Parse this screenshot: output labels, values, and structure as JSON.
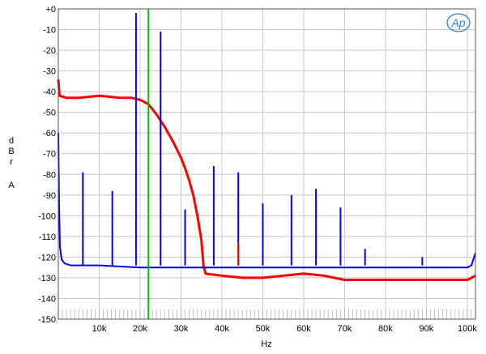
{
  "chart_data": {
    "type": "line",
    "title": "",
    "xlabel": "Hz",
    "ylabel": "dBr A",
    "ylabel_chars": [
      "d",
      "B",
      "r",
      "",
      "A"
    ],
    "logo": "AP",
    "xlim": [
      0,
      102000
    ],
    "ylim": [
      -150,
      0
    ],
    "grid": true,
    "y_ticks": [
      0,
      -10,
      -20,
      -30,
      -40,
      -50,
      -60,
      -70,
      -80,
      -90,
      -100,
      -110,
      -120,
      -130,
      -140,
      -150
    ],
    "y_tick_labels": [
      "+0",
      "-10",
      "-20",
      "-30",
      "-40",
      "-50",
      "-60",
      "-70",
      "-80",
      "-90",
      "-100",
      "-110",
      "-120",
      "-130",
      "-140",
      "-150"
    ],
    "x_ticks": [
      10000,
      20000,
      30000,
      40000,
      50000,
      60000,
      70000,
      80000,
      90000,
      100000
    ],
    "x_tick_labels": [
      "10k",
      "20k",
      "30k",
      "40k",
      "50k",
      "60k",
      "70k",
      "80k",
      "90k",
      "100k"
    ],
    "series": [
      {
        "color": "#ff0000",
        "x": [
          0,
          300,
          2000,
          5000,
          10000,
          15000,
          18000,
          20000,
          22000,
          24000,
          26000,
          28000,
          30000,
          31000,
          32000,
          33000,
          34000,
          35000,
          35500,
          36000,
          40000,
          45000,
          50000,
          55000,
          60000,
          65000,
          70000,
          80000,
          90000,
          100000,
          102000
        ],
        "y": [
          -34,
          -42,
          -43,
          -43,
          -42,
          -43,
          -43,
          -44,
          -46,
          -51,
          -57,
          -64,
          -72,
          -77,
          -83,
          -90,
          -100,
          -112,
          -124,
          -128,
          -129,
          -130,
          -130,
          -129,
          -128,
          -129,
          -131,
          -131,
          -131,
          -131,
          -129
        ]
      },
      {
        "color": "#0000ff",
        "x": [
          0,
          200,
          400,
          800,
          1500,
          3000,
          10000,
          20000,
          30000,
          40000,
          50000,
          60000,
          70000,
          80000,
          90000,
          100000,
          101000,
          102000
        ],
        "y": [
          -60,
          -95,
          -115,
          -121,
          -123,
          -124,
          -124,
          -125,
          -125,
          -125,
          -125,
          -125,
          -125,
          -125,
          -125,
          -125,
          -124,
          -118
        ]
      },
      {
        "color": "#00c000",
        "x": [
          22050,
          22050
        ],
        "y": [
          -150,
          0
        ]
      }
    ],
    "spikes": [
      {
        "x": 6000,
        "y": -79,
        "color": "#0000ff"
      },
      {
        "x": 13200,
        "y": -88,
        "color": "#0000ff"
      },
      {
        "x": 19000,
        "y": -2,
        "color": "#0000ff"
      },
      {
        "x": 25000,
        "y": -11,
        "color": "#0000ff"
      },
      {
        "x": 31000,
        "y": -97,
        "color": "#0000ff"
      },
      {
        "x": 38000,
        "y": -76,
        "color": "#0000ff"
      },
      {
        "x": 44000,
        "y": -79,
        "color": "#0000ff"
      },
      {
        "x": 44000,
        "y": -113,
        "color": "#ff0000"
      },
      {
        "x": 50000,
        "y": -94,
        "color": "#0000ff"
      },
      {
        "x": 57000,
        "y": -90,
        "color": "#0000ff"
      },
      {
        "x": 63000,
        "y": -87,
        "color": "#0000ff"
      },
      {
        "x": 69000,
        "y": -96,
        "color": "#0000ff"
      },
      {
        "x": 75000,
        "y": -116,
        "color": "#0000ff"
      },
      {
        "x": 89000,
        "y": -120,
        "color": "#0000ff"
      }
    ]
  }
}
